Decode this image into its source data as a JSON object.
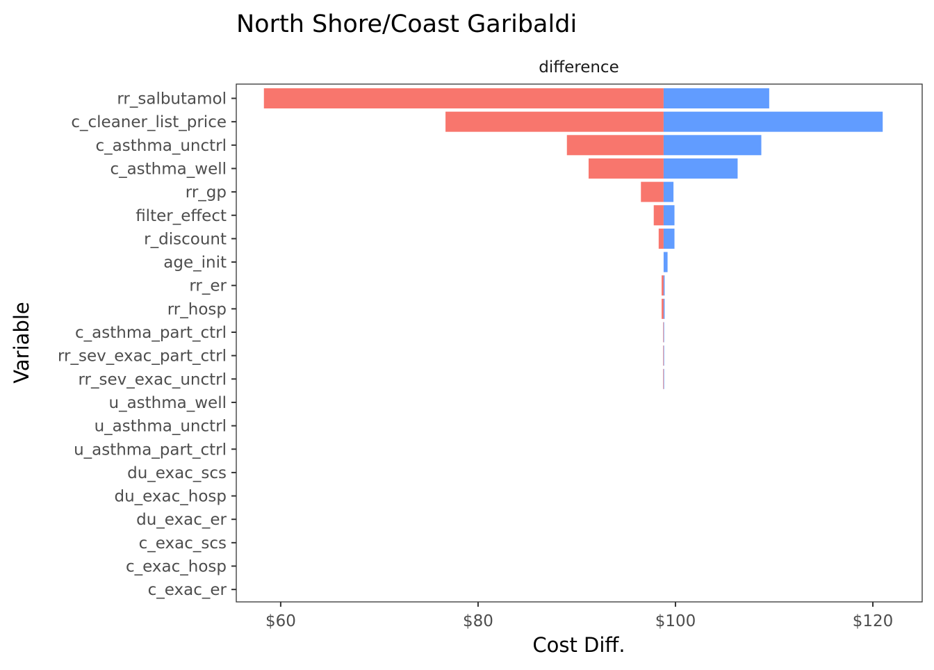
{
  "chart_data": {
    "type": "bar",
    "orientation": "horizontal",
    "subtype": "tornado",
    "title": "North Shore/Coast Garibaldi",
    "facet_label": "difference",
    "xlabel": "Cost Diff.",
    "ylabel": "Variable",
    "xlim": [
      55.5,
      125.0
    ],
    "x_ticks": [
      60,
      80,
      100,
      120
    ],
    "x_tick_labels": [
      "$60",
      "$80",
      "$100",
      "$120"
    ],
    "base_value": 98.8,
    "categories": [
      "rr_salbutamol",
      "c_cleaner_list_price",
      "c_asthma_unctrl",
      "c_asthma_well",
      "rr_gp",
      "filter_effect",
      "r_discount",
      "age_init",
      "rr_er",
      "rr_hosp",
      "c_asthma_part_ctrl",
      "rr_sev_exac_part_ctrl",
      "rr_sev_exac_unctrl",
      "u_asthma_well",
      "u_asthma_unctrl",
      "u_asthma_part_ctrl",
      "du_exac_scs",
      "du_exac_hosp",
      "du_exac_er",
      "c_exac_scs",
      "c_exac_hosp",
      "c_exac_er"
    ],
    "series": [
      {
        "name": "low",
        "color": "#F8766D",
        "values": [
          58.3,
          76.7,
          89.0,
          91.2,
          96.5,
          97.8,
          98.3,
          98.8,
          98.6,
          98.6,
          98.75,
          98.75,
          98.75,
          98.8,
          98.8,
          98.8,
          98.8,
          98.8,
          98.8,
          98.8,
          98.8,
          98.8
        ]
      },
      {
        "name": "high",
        "color": "#619CFF",
        "values": [
          109.5,
          121.0,
          108.7,
          106.3,
          99.8,
          99.9,
          99.9,
          99.2,
          98.9,
          98.9,
          98.85,
          98.85,
          98.85,
          98.8,
          98.8,
          98.8,
          98.8,
          98.8,
          98.8,
          98.8,
          98.8,
          98.8
        ]
      }
    ],
    "grid": false,
    "legend": "none"
  }
}
